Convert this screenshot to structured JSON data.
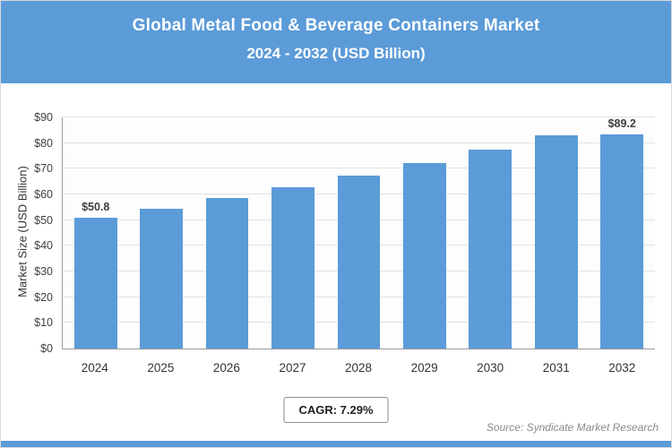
{
  "header": {
    "title_line1": "Global Metal Food & Beverage Containers Market",
    "title_line2": "2024 - 2032 (USD Billion)"
  },
  "chart_data": {
    "type": "bar",
    "title": "Global Metal Food & Beverage Containers Market 2024 - 2032 (USD Billion)",
    "categories": [
      "2024",
      "2025",
      "2026",
      "2027",
      "2028",
      "2029",
      "2030",
      "2031",
      "2032"
    ],
    "values": [
      50.8,
      54.5,
      58.5,
      62.7,
      67.3,
      72.2,
      77.5,
      83.1,
      89.2
    ],
    "bar_value_labels": [
      "$50.8",
      null,
      null,
      null,
      null,
      null,
      null,
      null,
      "$89.2"
    ],
    "xlabel": "",
    "ylabel": "Market Size (USD Billion)",
    "ylim": [
      0,
      90
    ],
    "ytick_step": 10,
    "ytick_labels": [
      "$0",
      "$10",
      "$20",
      "$30",
      "$40",
      "$50",
      "$60",
      "$70",
      "$80",
      "$90"
    ],
    "grid": "horizontal",
    "legend": "none"
  },
  "footer": {
    "cagr_label": "CAGR: 7.29%",
    "source": "Source: Syndicate Market Research"
  },
  "colors": {
    "accent": "#5b9bd8",
    "bar_fill": "#5b9bd8",
    "gridline": "#e2e2e2",
    "axis": "#9a9a9a",
    "value_label": "#404040",
    "source_text": "#8a8a8a"
  }
}
